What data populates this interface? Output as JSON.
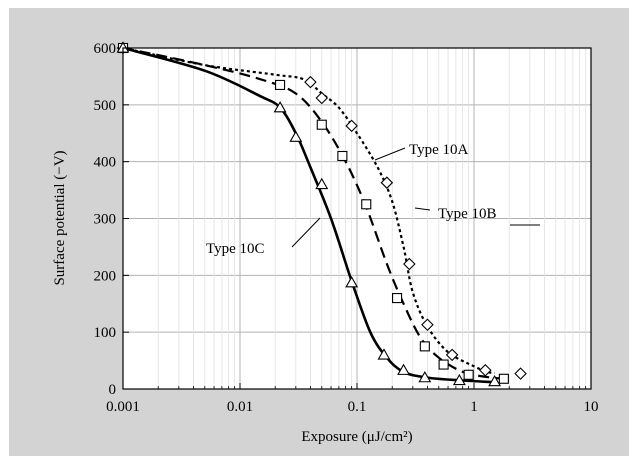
{
  "chart_data": {
    "type": "line",
    "xscale": "log",
    "xlim": [
      0.001,
      10
    ],
    "ylim": [
      0,
      600
    ],
    "xlabel": "Exposure (μJ/cm²)",
    "ylabel": "Surface potential (−V)",
    "x_ticks": [
      0.001,
      0.01,
      0.1,
      1,
      10
    ],
    "x_tick_labels": [
      "0.001",
      "0.01",
      "0.1",
      "1",
      "10"
    ],
    "y_ticks": [
      0,
      100,
      200,
      300,
      400,
      500,
      600
    ],
    "y_tick_labels": [
      "0",
      "100",
      "200",
      "300",
      "400",
      "500",
      "600"
    ],
    "grid": true,
    "colors": {
      "background": "#d3d3d3",
      "plot_area": "#ffffff",
      "grid": "#b3b3b3",
      "ink": "#000000"
    },
    "series": [
      {
        "name": "Type 10A",
        "marker": "diamond",
        "line": "dotted",
        "points": [
          [
            0.001,
            600
          ],
          [
            0.04,
            540
          ],
          [
            0.05,
            512
          ],
          [
            0.09,
            463
          ],
          [
            0.18,
            363
          ],
          [
            0.28,
            220
          ],
          [
            0.4,
            113
          ],
          [
            0.65,
            60
          ],
          [
            1.25,
            33
          ],
          [
            2.5,
            27
          ]
        ],
        "curve": [
          [
            0.001,
            600
          ],
          [
            0.005,
            570
          ],
          [
            0.02,
            553
          ],
          [
            0.035,
            545
          ],
          [
            0.05,
            520
          ],
          [
            0.07,
            495
          ],
          [
            0.1,
            450
          ],
          [
            0.15,
            390
          ],
          [
            0.2,
            330
          ],
          [
            0.25,
            250
          ],
          [
            0.3,
            170
          ],
          [
            0.4,
            110
          ],
          [
            0.6,
            65
          ],
          [
            1.0,
            40
          ],
          [
            1.3,
            30
          ],
          [
            1.5,
            28
          ]
        ]
      },
      {
        "name": "Type 10B",
        "marker": "square",
        "line": "dashed",
        "points": [
          [
            0.001,
            600
          ],
          [
            0.022,
            535
          ],
          [
            0.05,
            465
          ],
          [
            0.075,
            410
          ],
          [
            0.12,
            325
          ],
          [
            0.22,
            160
          ],
          [
            0.38,
            75
          ],
          [
            0.55,
            43
          ],
          [
            0.9,
            25
          ],
          [
            1.8,
            18
          ]
        ],
        "curve": [
          [
            0.001,
            600
          ],
          [
            0.005,
            570
          ],
          [
            0.015,
            545
          ],
          [
            0.03,
            520
          ],
          [
            0.05,
            470
          ],
          [
            0.08,
            400
          ],
          [
            0.12,
            320
          ],
          [
            0.18,
            220
          ],
          [
            0.25,
            150
          ],
          [
            0.35,
            90
          ],
          [
            0.5,
            55
          ],
          [
            0.8,
            30
          ],
          [
            1.2,
            22
          ],
          [
            1.8,
            18
          ]
        ]
      },
      {
        "name": "Type 10C",
        "marker": "triangle",
        "line": "solid",
        "points": [
          [
            0.001,
            600
          ],
          [
            0.022,
            495
          ],
          [
            0.03,
            443
          ],
          [
            0.05,
            360
          ],
          [
            0.09,
            187
          ],
          [
            0.17,
            60
          ],
          [
            0.25,
            33
          ],
          [
            0.38,
            20
          ],
          [
            0.75,
            15
          ],
          [
            1.5,
            13
          ]
        ],
        "curve": [
          [
            0.001,
            600
          ],
          [
            0.005,
            560
          ],
          [
            0.015,
            515
          ],
          [
            0.022,
            495
          ],
          [
            0.03,
            450
          ],
          [
            0.04,
            390
          ],
          [
            0.06,
            300
          ],
          [
            0.09,
            190
          ],
          [
            0.13,
            100
          ],
          [
            0.18,
            55
          ],
          [
            0.25,
            30
          ],
          [
            0.4,
            20
          ],
          [
            0.8,
            15
          ],
          [
            1.5,
            12
          ]
        ]
      }
    ],
    "annotations": [
      {
        "text": "Type 10A",
        "series": "Type 10A"
      },
      {
        "text": "Type 10B",
        "series": "Type 10B"
      },
      {
        "text": "Type 10C",
        "series": "Type 10C"
      }
    ]
  }
}
